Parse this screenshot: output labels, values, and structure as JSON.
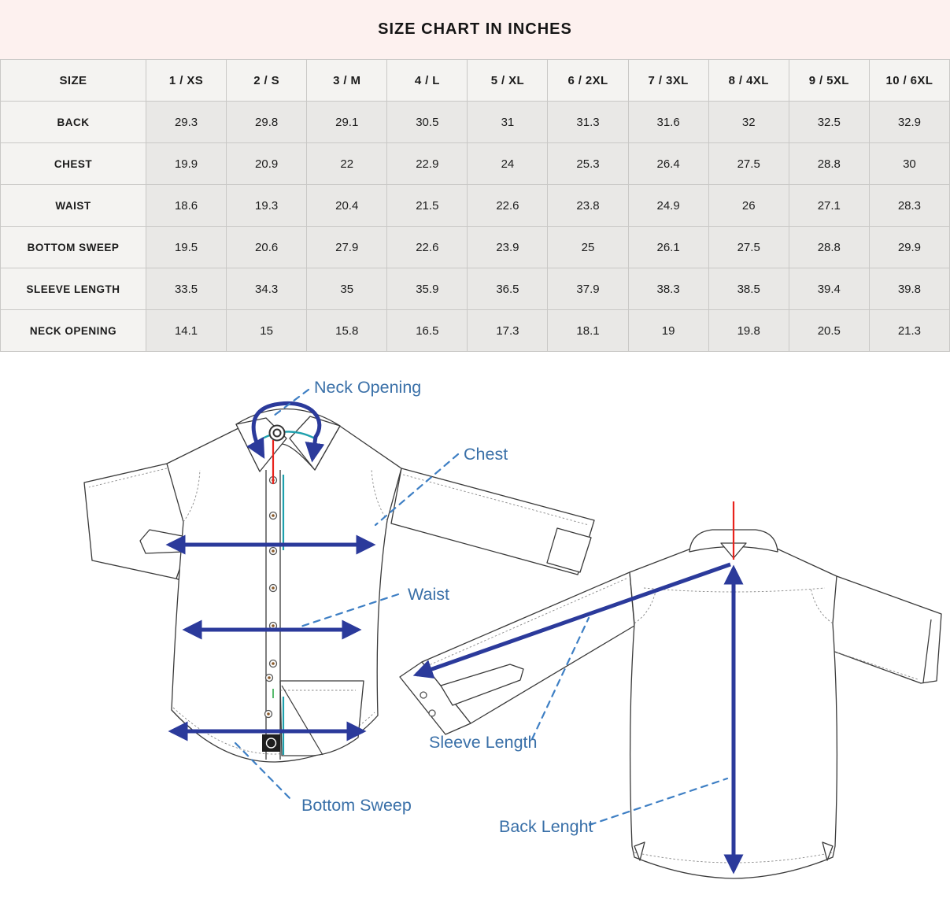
{
  "title": "SIZE CHART IN INCHES",
  "table": {
    "header": [
      "SIZE",
      "1 / XS",
      "2 / S",
      "3 / M",
      "4 / L",
      "5 / XL",
      "6 / 2XL",
      "7 / 3XL",
      "8 / 4XL",
      "9 / 5XL",
      "10 / 6XL"
    ],
    "rows": [
      {
        "label": "BACK",
        "values": [
          "29.3",
          "29.8",
          "29.1",
          "30.5",
          "31",
          "31.3",
          "31.6",
          "32",
          "32.5",
          "32.9"
        ]
      },
      {
        "label": "CHEST",
        "values": [
          "19.9",
          "20.9",
          "22",
          "22.9",
          "24",
          "25.3",
          "26.4",
          "27.5",
          "28.8",
          "30"
        ]
      },
      {
        "label": "WAIST",
        "values": [
          "18.6",
          "19.3",
          "20.4",
          "21.5",
          "22.6",
          "23.8",
          "24.9",
          "26",
          "27.1",
          "28.3"
        ]
      },
      {
        "label": "BOTTOM SWEEP",
        "values": [
          "19.5",
          "20.6",
          "27.9",
          "22.6",
          "23.9",
          "25",
          "26.1",
          "27.5",
          "28.8",
          "29.9"
        ]
      },
      {
        "label": "SLEEVE LENGTH",
        "values": [
          "33.5",
          "34.3",
          "35",
          "35.9",
          "36.5",
          "37.9",
          "38.3",
          "38.5",
          "39.4",
          "39.8"
        ]
      },
      {
        "label": "NECK OPENING",
        "values": [
          "14.1",
          "15",
          "15.8",
          "16.5",
          "17.3",
          "18.1",
          "19",
          "19.8",
          "20.5",
          "21.3"
        ]
      }
    ]
  },
  "diagram": {
    "labels": {
      "neck_opening": "Neck Opening",
      "chest": "Chest",
      "waist": "Waist",
      "sleeve_length": "Sleeve Length",
      "bottom_sweep": "Bottom Sweep",
      "back_length": "Back Lenght"
    },
    "colors": {
      "measure_arrow": "#2b3a9b",
      "label_text": "#3a70a8",
      "leader_dash": "#3e7fc4",
      "line_art": "#3a3a3a",
      "accent_red": "#e8231d",
      "accent_teal": "#1fa0ad"
    }
  },
  "colors": {
    "title_band_bg": "#fdf1ef",
    "table_header_bg": "#f4f3f1",
    "table_cell_bg": "#e9e8e6",
    "table_border": "#c9c8c6",
    "text": "#1c1c1c"
  }
}
